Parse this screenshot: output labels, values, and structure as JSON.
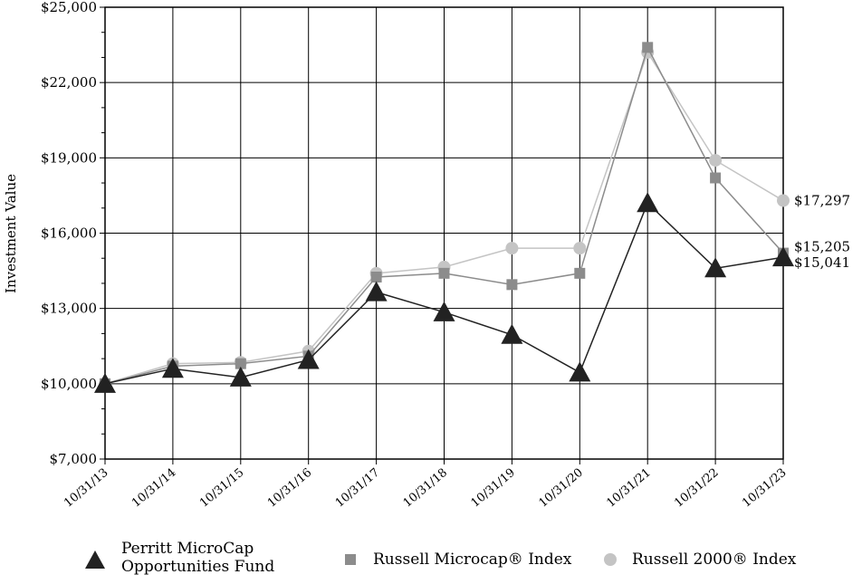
{
  "chart_data": {
    "type": "line",
    "title": "",
    "xlabel": "",
    "ylabel": "Investment Value",
    "categories": [
      "10/31/13",
      "10/31/14",
      "10/31/15",
      "10/31/16",
      "10/31/17",
      "10/31/18",
      "10/31/19",
      "10/31/20",
      "10/31/21",
      "10/31/22",
      "10/31/23"
    ],
    "ylim": [
      7000,
      25000
    ],
    "yticks": [
      7000,
      10000,
      13000,
      16000,
      19000,
      22000,
      25000
    ],
    "ytick_labels": [
      "$7,000",
      "$10,000",
      "$13,000",
      "$16,000",
      "$19,000",
      "$22,000",
      "$25,000"
    ],
    "grid": true,
    "legend_position": "bottom",
    "series": [
      {
        "name": "Perritt MicroCap Opportunities Fund",
        "marker": "triangle",
        "color": "#222222",
        "values": [
          10000,
          10600,
          10250,
          10950,
          13650,
          12850,
          11950,
          10450,
          17200,
          14600,
          15041
        ],
        "end_label": "$15,041"
      },
      {
        "name": "Russell Microcap® Index",
        "marker": "square",
        "color": "#8c8c8c",
        "values": [
          10000,
          10700,
          10800,
          11100,
          14250,
          14400,
          13950,
          14400,
          23400,
          18200,
          15205
        ],
        "end_label": "$15,205"
      },
      {
        "name": "Russell 2000® Index",
        "marker": "circle",
        "color": "#c4c4c4",
        "values": [
          10000,
          10800,
          10850,
          11300,
          14400,
          14650,
          15400,
          15400,
          23200,
          18900,
          17297
        ],
        "end_label": "$17,297"
      }
    ]
  },
  "legend": {
    "fund_line1": "Perritt MicroCap",
    "fund_line2": "Opportunities Fund",
    "microcap": "Russell Microcap® Index",
    "r2000": "Russell 2000® Index"
  }
}
